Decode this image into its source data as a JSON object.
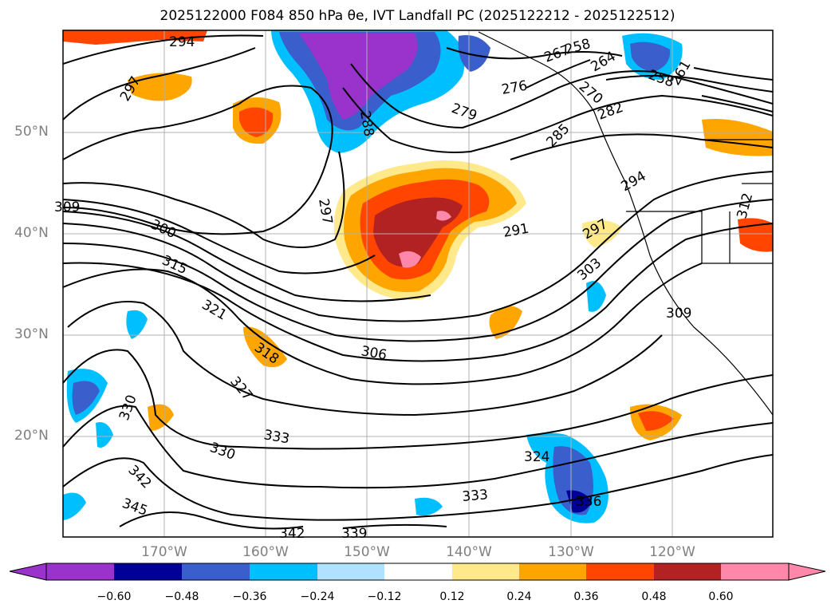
{
  "title": "2025122000 F084 850 hPa θe, IVT Landfall PC (2025122212 - 2025122512)",
  "colors": {
    "frame": "#000000",
    "grid": "#b0b0b0",
    "contour": "#000000",
    "coast": "#000000",
    "land": "#ffffff"
  },
  "lat_labels": [
    "50°N",
    "40°N",
    "30°N",
    "20°N"
  ],
  "lon_labels": [
    "170°W",
    "160°W",
    "150°W",
    "140°W",
    "130°W",
    "120°W"
  ],
  "contour_labels": [
    "294",
    "297",
    "297",
    "288",
    "279",
    "276",
    "267",
    "258",
    "264",
    "270",
    "258",
    "261",
    "282",
    "285",
    "294",
    "297",
    "291",
    "309",
    "300",
    "315",
    "321",
    "318",
    "306",
    "303",
    "309",
    "327",
    "330",
    "330",
    "333",
    "324",
    "333",
    "336",
    "342",
    "345",
    "342",
    "339",
    "312"
  ],
  "colorbar": {
    "ticks": [
      "−0.60",
      "−0.48",
      "−0.36",
      "−0.24",
      "−0.12",
      "0.12",
      "0.24",
      "0.36",
      "0.48",
      "0.60"
    ],
    "colors": [
      "#9933cc",
      "#000099",
      "#3a5fcd",
      "#00bfff",
      "#b0e2ff",
      "#ffffff",
      "#ffe98a",
      "#ffa500",
      "#ff4500",
      "#b22222",
      "#ff88aa"
    ]
  }
}
